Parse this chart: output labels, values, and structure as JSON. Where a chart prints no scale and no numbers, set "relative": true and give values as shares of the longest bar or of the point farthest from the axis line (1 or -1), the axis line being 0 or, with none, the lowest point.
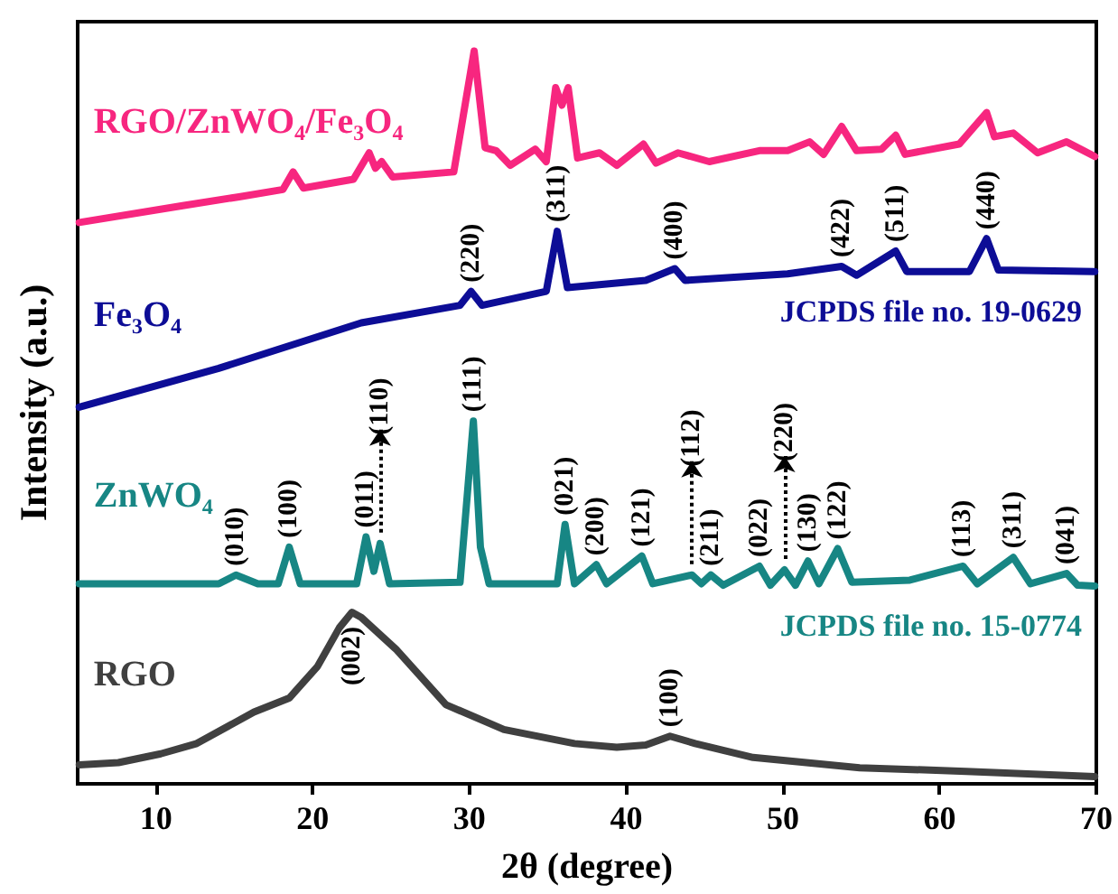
{
  "chart_data": {
    "type": "line",
    "relative": true,
    "xlabel": "2θ (degree)",
    "ylabel": "Intensity (a.u.)",
    "xlim": [
      5,
      70
    ],
    "xticks": [
      10,
      20,
      30,
      40,
      50,
      60,
      70
    ],
    "marker": "none",
    "series": [
      {
        "name": "RGO/ZnWO₄/Fe₃O₄",
        "color": "#f7267f",
        "x": [
          5.1,
          11.7,
          15.3,
          18.1,
          18.75,
          19.4,
          22.6,
          23.6,
          24.0,
          24.4,
          25.1,
          29.0,
          30.3,
          31.0,
          31.7,
          32.6,
          34.2,
          34.9,
          35.5,
          35.9,
          36.3,
          36.9,
          38.3,
          39.4,
          41.1,
          41.9,
          43.3,
          45.3,
          48.5,
          50.3,
          51.7,
          52.6,
          53.75,
          54.7,
          56.3,
          57.2,
          57.8,
          61.25,
          63.0,
          63.5,
          64.7,
          66.25,
          68.1,
          69.9
        ],
        "values": [
          0.766,
          0.789,
          0.801,
          0.811,
          0.835,
          0.813,
          0.825,
          0.861,
          0.84,
          0.849,
          0.828,
          0.835,
          1.0,
          0.868,
          0.864,
          0.844,
          0.866,
          0.849,
          0.95,
          0.926,
          0.95,
          0.854,
          0.861,
          0.844,
          0.873,
          0.847,
          0.861,
          0.849,
          0.864,
          0.864,
          0.876,
          0.859,
          0.897,
          0.864,
          0.866,
          0.885,
          0.859,
          0.873,
          0.916,
          0.883,
          0.888,
          0.861,
          0.876,
          0.856
        ]
      },
      {
        "name": "Fe₃O₄",
        "color": "#0d0d96",
        "x": [
          5.1,
          14.0,
          23.1,
          29.4,
          30.1,
          30.8,
          34.9,
          35.6,
          36.25,
          41.25,
          43.1,
          43.75,
          50.3,
          53.75,
          54.7,
          57.2,
          57.9,
          61.9,
          63.0,
          63.75,
          69.9
        ],
        "values": [
          0.514,
          0.567,
          0.629,
          0.653,
          0.672,
          0.653,
          0.672,
          0.754,
          0.677,
          0.687,
          0.703,
          0.687,
          0.696,
          0.706,
          0.694,
          0.727,
          0.699,
          0.699,
          0.744,
          0.701,
          0.699
        ]
      },
      {
        "name": "ZnWO₄",
        "color": "#178684",
        "x": [
          5.1,
          14.0,
          15.1,
          16.5,
          17.8,
          18.5,
          19.2,
          22.8,
          23.4,
          23.9,
          24.3,
          24.9,
          29.4,
          30.25,
          30.7,
          31.25,
          35.6,
          36.1,
          36.7,
          38.1,
          38.75,
          41.0,
          41.7,
          44.2,
          44.8,
          45.4,
          46.2,
          48.5,
          49.2,
          50.1,
          50.8,
          51.6,
          52.3,
          53.5,
          54.4,
          58.1,
          61.5,
          62.4,
          64.7,
          65.8,
          68.1,
          68.8,
          69.9
        ],
        "values": [
          0.273,
          0.273,
          0.285,
          0.273,
          0.273,
          0.323,
          0.273,
          0.273,
          0.337,
          0.29,
          0.328,
          0.273,
          0.275,
          0.495,
          0.323,
          0.273,
          0.273,
          0.354,
          0.273,
          0.299,
          0.273,
          0.311,
          0.273,
          0.285,
          0.273,
          0.285,
          0.271,
          0.297,
          0.271,
          0.292,
          0.271,
          0.304,
          0.273,
          0.321,
          0.275,
          0.278,
          0.297,
          0.273,
          0.309,
          0.273,
          0.287,
          0.271,
          0.27
        ]
      },
      {
        "name": "RGO",
        "color": "#404040",
        "x": [
          5.1,
          7.6,
          10.3,
          12.6,
          16.25,
          18.5,
          20.3,
          21.7,
          22.5,
          23.1,
          25.3,
          28.5,
          32.2,
          36.7,
          39.4,
          41.25,
          42.8,
          44.4,
          48.1,
          54.9,
          61.7,
          69.9
        ],
        "values": [
          0.026,
          0.029,
          0.041,
          0.055,
          0.098,
          0.117,
          0.16,
          0.213,
          0.234,
          0.227,
          0.184,
          0.108,
          0.074,
          0.055,
          0.05,
          0.053,
          0.065,
          0.055,
          0.036,
          0.022,
          0.017,
          0.01
        ]
      }
    ],
    "annotations": [
      {
        "text": "(220)",
        "x": 30.1,
        "y": 0.672
      },
      {
        "text": "(311)",
        "x": 35.6,
        "y": 0.754
      },
      {
        "text": "(400)",
        "x": 43.1,
        "y": 0.703
      },
      {
        "text": "(422)",
        "x": 53.75,
        "y": 0.706
      },
      {
        "text": "(511)",
        "x": 57.2,
        "y": 0.727
      },
      {
        "text": "(440)",
        "x": 63.0,
        "y": 0.744
      },
      "JCPDS file no. 19-0629",
      {
        "text": "(010)",
        "x": 15.1,
        "y": 0.285
      },
      {
        "text": "(100)",
        "x": 18.5,
        "y": 0.323
      },
      {
        "text": "(011)",
        "x": 23.4,
        "y": 0.337
      },
      {
        "text": "(110)",
        "x": 24.3,
        "y": 0.328
      },
      {
        "text": "(111)",
        "x": 30.25,
        "y": 0.495
      },
      {
        "text": "(021)",
        "x": 36.1,
        "y": 0.354
      },
      {
        "text": "(200)",
        "x": 38.1,
        "y": 0.299
      },
      {
        "text": "(121)",
        "x": 41.0,
        "y": 0.311
      },
      {
        "text": "(211)",
        "x": 45.4,
        "y": 0.285
      },
      {
        "text": "(112)",
        "x": 44.2,
        "y": 0.285
      },
      {
        "text": "(022)",
        "x": 48.5,
        "y": 0.297
      },
      {
        "text": "(130)",
        "x": 51.6,
        "y": 0.304
      },
      {
        "text": "(220)",
        "x": 50.1,
        "y": 0.292
      },
      {
        "text": "(122)",
        "x": 53.5,
        "y": 0.321
      },
      {
        "text": "(113)",
        "x": 61.5,
        "y": 0.297
      },
      {
        "text": "(311)",
        "x": 64.7,
        "y": 0.309
      },
      {
        "text": "(041)",
        "x": 68.1,
        "y": 0.287
      },
      "JCPDS file no. 15-0774",
      {
        "text": "(002)",
        "x": 22.5,
        "y": 0.234
      },
      {
        "text": "(100)",
        "x": 42.8,
        "y": 0.065
      }
    ]
  }
}
